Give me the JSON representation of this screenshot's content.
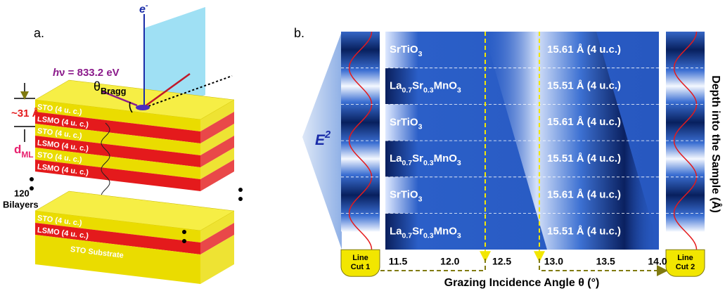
{
  "panel_a": {
    "label": "a.",
    "photon": [
      "h",
      "ν = 833.2 eV"
    ],
    "electron": [
      "e",
      "-"
    ],
    "bragg": [
      "θ",
      "Bragg"
    ],
    "period": "~31 Å",
    "d_ml": [
      "d",
      "ML"
    ],
    "bilayer_count": "120",
    "bilayers": "Bilayers",
    "top_layers": [
      "STO (4 u. c.)",
      "LSMO (4 u. c.)",
      "STO (4 u. c.)",
      "LSMO (4 u. c.)",
      "STO (4 u. c.)",
      "LSMO (4 u. c.)"
    ],
    "lower_layers": [
      "STO (4 u. c.)",
      "LSMO (4 u. c.)"
    ],
    "substrate": "STO Substrate"
  },
  "panel_b": {
    "label": "b.",
    "field": [
      "E",
      "2"
    ],
    "rows": [
      {
        "material": [
          "SrTiO",
          "3"
        ],
        "thickness": "15.61 Å (4 u.c.)"
      },
      {
        "material": [
          "La",
          "0.7",
          "Sr",
          "0.3",
          "MnO",
          "3"
        ],
        "thickness": "15.51 Å (4 u.c.)"
      },
      {
        "material": [
          "SrTiO",
          "3"
        ],
        "thickness": "15.61 Å (4 u.c.)"
      },
      {
        "material": [
          "La",
          "0.7",
          "Sr",
          "0.3",
          "MnO",
          "3"
        ],
        "thickness": "15.51 Å (4 u.c.)"
      },
      {
        "material": [
          "SrTiO",
          "3"
        ],
        "thickness": "15.61 Å (4 u.c.)"
      },
      {
        "material": [
          "La",
          "0.7",
          "Sr",
          "0.3",
          "MnO",
          "3"
        ],
        "thickness": "15.51 Å (4 u.c.)"
      }
    ],
    "x_ticks": [
      "11.5",
      "12.0",
      "12.5",
      "13.0",
      "13.5",
      "14.0"
    ],
    "x_axis_label": "Grazing Incidence Angle θ (°)",
    "y_axis_label": "Depth into the Sample (Å)",
    "line_cut_1": [
      "Line",
      "Cut 1"
    ],
    "line_cut_2": [
      "Line",
      "Cut 2"
    ]
  }
}
